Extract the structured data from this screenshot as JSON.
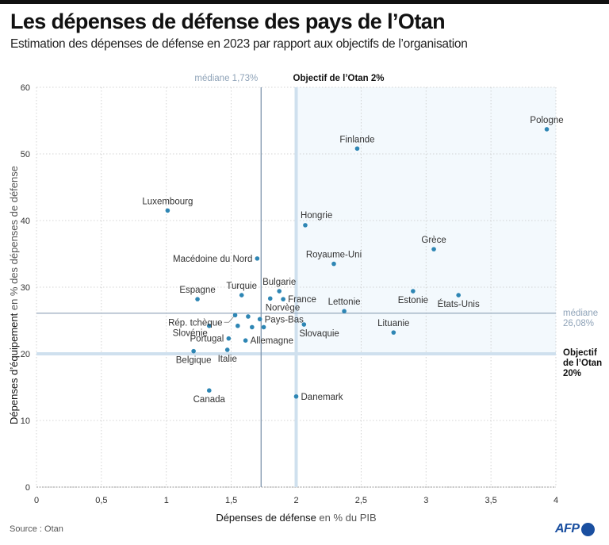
{
  "header": {
    "title": "Les dépenses de défense des pays de l’Otan",
    "subtitle": "Estimation des dépenses de défense en 2023 par rapport aux objectifs de l’organisation"
  },
  "footer": {
    "source": "Source : Otan",
    "logo": "AFP"
  },
  "colors": {
    "dot": "#2e86b4",
    "median_line": "#7f95ad",
    "target_band": "#cfe0ee",
    "target_region": "#f3f9fd",
    "grid": "#c8c8c8"
  },
  "chart_data": {
    "type": "scatter",
    "title": "Les dépenses de défense des pays de l’Otan",
    "subtitle": "Estimation des dépenses de défense en 2023 par rapport aux objectifs de l’organisation",
    "xlabel_bold": "Dépenses de défense",
    "xlabel_rest": " en % du PIB",
    "ylabel_bold": "Dépenses d’équipement",
    "ylabel_rest": " en % des dépenses de défense",
    "xlim": [
      0,
      4
    ],
    "ylim": [
      0,
      60
    ],
    "xticks": [
      0,
      0.5,
      1,
      1.5,
      2,
      2.5,
      3,
      3.5,
      4
    ],
    "xtick_labels": [
      "0",
      "0,5",
      "1",
      "1,5",
      "2",
      "2,5",
      "3",
      "3,5",
      "4"
    ],
    "yticks": [
      0,
      10,
      20,
      30,
      40,
      50,
      60
    ],
    "ytick_labels": [
      "0",
      "10",
      "20",
      "30",
      "40",
      "50",
      "60"
    ],
    "grid": true,
    "reference_lines": {
      "median_x": {
        "value": 1.73,
        "label": "médiane 1,73%"
      },
      "target_x": {
        "value": 2,
        "label": "Objectif de l’Otan 2%"
      },
      "median_y": {
        "value": 26.08,
        "label_lines": [
          "médiane",
          "26,08%"
        ]
      },
      "target_y": {
        "value": 20,
        "label_lines": [
          "Objectif",
          "de l’Otan",
          "20%"
        ]
      }
    },
    "points": [
      {
        "name": "Pologne",
        "x": 3.93,
        "y": 53.7,
        "label_pos": "above"
      },
      {
        "name": "Finlande",
        "x": 2.47,
        "y": 50.8,
        "label_pos": "above"
      },
      {
        "name": "Luxembourg",
        "x": 1.01,
        "y": 41.5,
        "label_pos": "above"
      },
      {
        "name": "Hongrie",
        "x": 2.07,
        "y": 39.3,
        "label_pos": "above-right"
      },
      {
        "name": "Grèce",
        "x": 3.06,
        "y": 35.7,
        "label_pos": "above"
      },
      {
        "name": "Macédoine du Nord",
        "x": 1.7,
        "y": 34.3,
        "label_pos": "left"
      },
      {
        "name": "Royaume-Uni",
        "x": 2.29,
        "y": 33.5,
        "label_pos": "above"
      },
      {
        "name": "Bulgarie",
        "x": 1.87,
        "y": 29.4,
        "label_pos": "above"
      },
      {
        "name": "Estonie",
        "x": 2.9,
        "y": 29.4,
        "label_pos": "below"
      },
      {
        "name": "Turquie",
        "x": 1.58,
        "y": 28.8,
        "label_pos": "above"
      },
      {
        "name": "États-Unis",
        "x": 3.25,
        "y": 28.8,
        "label_pos": "below"
      },
      {
        "name": "Espagne",
        "x": 1.24,
        "y": 28.2,
        "label_pos": "above"
      },
      {
        "name": "Norvège",
        "x": 1.8,
        "y": 28.3,
        "label_pos": "below-right"
      },
      {
        "name": "France",
        "x": 1.9,
        "y": 28.2,
        "label_pos": "right"
      },
      {
        "name": "Lettonie",
        "x": 2.37,
        "y": 26.4,
        "label_pos": "above"
      },
      {
        "name": "Rép. tchèque",
        "x": 1.53,
        "y": 25.8,
        "label_pos": "left-leader"
      },
      {
        "name": "",
        "x": 1.63,
        "y": 25.6,
        "label_pos": "none"
      },
      {
        "name": "Pays-Bas",
        "x": 1.72,
        "y": 25.2,
        "label_pos": "right"
      },
      {
        "name": "Slovaquie",
        "x": 2.06,
        "y": 24.4,
        "label_pos": "below-right"
      },
      {
        "name": "Slovénie",
        "x": 1.33,
        "y": 24.2,
        "label_pos": "below-left"
      },
      {
        "name": "",
        "x": 1.55,
        "y": 24.2,
        "label_pos": "none"
      },
      {
        "name": "",
        "x": 1.66,
        "y": 24.0,
        "label_pos": "none"
      },
      {
        "name": "",
        "x": 1.75,
        "y": 24.0,
        "label_pos": "none"
      },
      {
        "name": "Lituanie",
        "x": 2.75,
        "y": 23.2,
        "label_pos": "above"
      },
      {
        "name": "Portugal",
        "x": 1.48,
        "y": 22.3,
        "label_pos": "left"
      },
      {
        "name": "Allemagne",
        "x": 1.61,
        "y": 22.0,
        "label_pos": "right"
      },
      {
        "name": "Italie",
        "x": 1.47,
        "y": 20.6,
        "label_pos": "below"
      },
      {
        "name": "Belgique",
        "x": 1.21,
        "y": 20.4,
        "label_pos": "below"
      },
      {
        "name": "Canada",
        "x": 1.33,
        "y": 14.5,
        "label_pos": "below"
      },
      {
        "name": "Danemark",
        "x": 2.0,
        "y": 13.6,
        "label_pos": "right"
      }
    ]
  }
}
